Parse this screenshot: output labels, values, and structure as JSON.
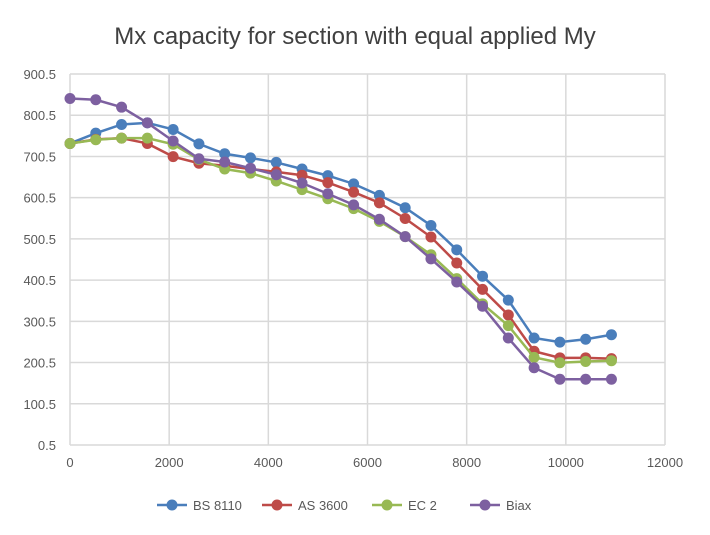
{
  "chart_data": {
    "type": "line",
    "title": "Mx capacity for section with equal applied My",
    "xlabel": "",
    "ylabel": "",
    "xlim": [
      0,
      12000
    ],
    "ylim": [
      0.5,
      900.5
    ],
    "xticks": [
      0,
      2000,
      4000,
      6000,
      8000,
      10000,
      12000
    ],
    "yticks": [
      0.5,
      100.5,
      200.5,
      300.5,
      400.5,
      500.5,
      600.5,
      700.5,
      800.5,
      900.5
    ],
    "xtick_labels": [
      "0",
      "2000",
      "4000",
      "6000",
      "8000",
      "10000",
      "12000"
    ],
    "ytick_labels": [
      "0.5",
      "100.5",
      "200.5",
      "300.5",
      "400.5",
      "500.5",
      "600.5",
      "700.5",
      "800.5",
      "900.5"
    ],
    "grid": true,
    "legend_position": "bottom",
    "x": [
      0,
      520,
      1040,
      1560,
      2080,
      2600,
      3120,
      3640,
      4160,
      4680,
      5200,
      5720,
      6240,
      6760,
      7280,
      7800,
      8320,
      8840,
      9360,
      9880,
      10400,
      10920
    ],
    "series": [
      {
        "name": "BS 8110",
        "color": "#4a7ebb",
        "values": [
          732,
          757,
          778,
          782,
          766,
          731,
          707,
          697,
          686,
          670,
          654,
          634,
          606,
          576,
          533,
          474,
          410,
          352,
          260,
          250,
          257,
          268
        ]
      },
      {
        "name": "AS 3600",
        "color": "#be4b48",
        "values": [
          732,
          742,
          745,
          732,
          700,
          684,
          678,
          670,
          663,
          655,
          637,
          614,
          588,
          550,
          505,
          442,
          378,
          316,
          228,
          212,
          212,
          210
        ]
      },
      {
        "name": "EC 2",
        "color": "#98b954",
        "values": [
          732,
          741,
          745,
          745,
          730,
          693,
          670,
          660,
          641,
          620,
          598,
          574,
          543,
          506,
          462,
          404,
          343,
          290,
          213,
          200,
          203,
          205
        ]
      },
      {
        "name": "Biax",
        "color": "#7d60a0",
        "values": [
          841,
          838,
          820,
          782,
          738,
          695,
          687,
          672,
          656,
          636,
          610,
          583,
          548,
          506,
          452,
          396,
          337,
          260,
          188,
          160,
          160,
          160
        ]
      }
    ]
  }
}
